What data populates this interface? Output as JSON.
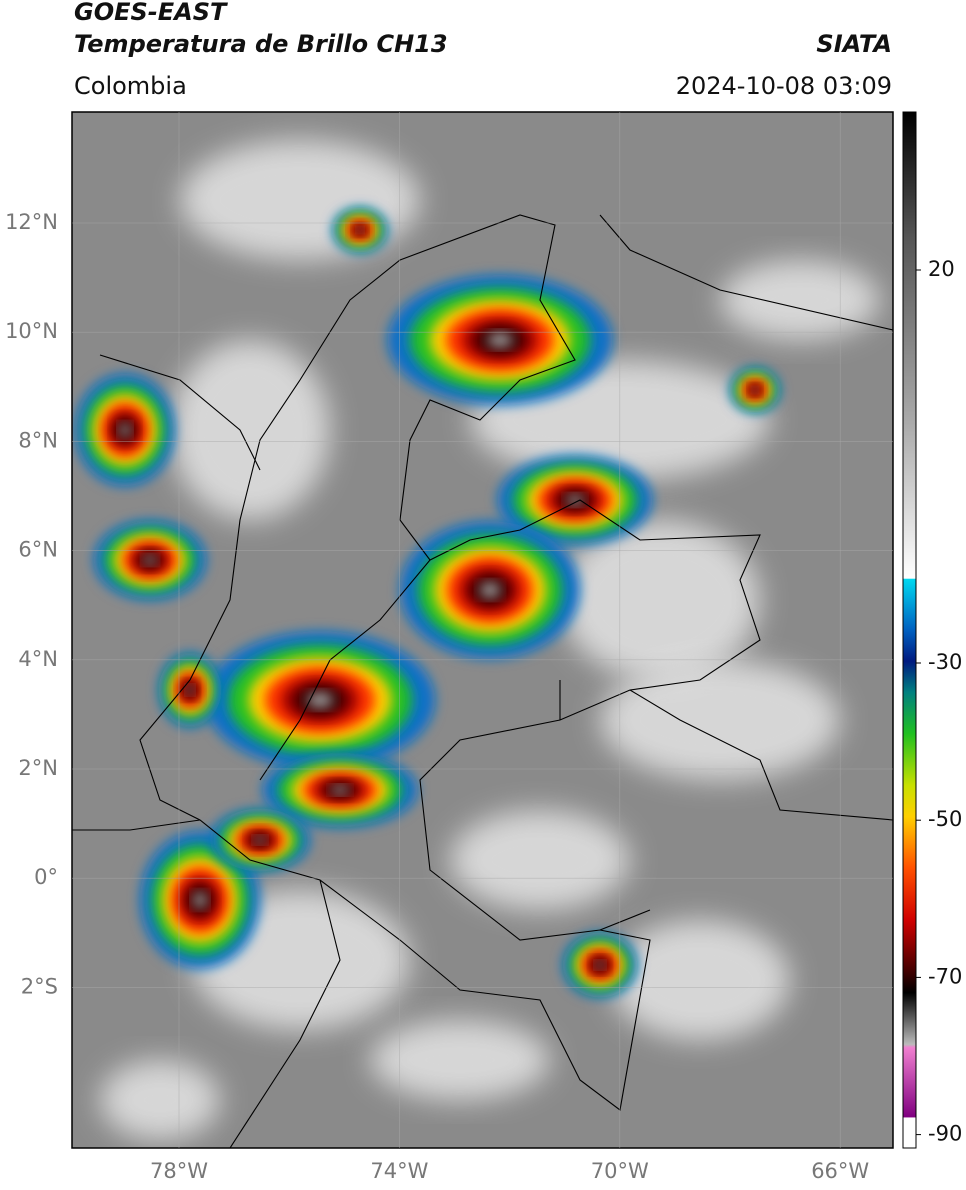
{
  "header": {
    "title": "GOES-EAST",
    "subtitle": "Temperatura de Brillo CH13",
    "source": "SIATA",
    "region": "Colombia",
    "datetime": "2024-10-08 03:09"
  },
  "map": {
    "lat_ticks": [
      {
        "value": 12,
        "label": "12°N"
      },
      {
        "value": 10,
        "label": "10°N"
      },
      {
        "value": 8,
        "label": "8°N"
      },
      {
        "value": 6,
        "label": "6°N"
      },
      {
        "value": 4,
        "label": "4°N"
      },
      {
        "value": 2,
        "label": "2°N"
      },
      {
        "value": 0,
        "label": "0°"
      },
      {
        "value": -2,
        "label": "2°S"
      }
    ],
    "lon_ticks": [
      {
        "value": -78,
        "label": "78°W"
      },
      {
        "value": -74,
        "label": "74°W"
      },
      {
        "value": -70,
        "label": "70°W"
      },
      {
        "value": -66,
        "label": "66°W"
      }
    ]
  },
  "colorbar": {
    "ticks": [
      20,
      -30,
      -50,
      -70,
      -90
    ]
  }
}
